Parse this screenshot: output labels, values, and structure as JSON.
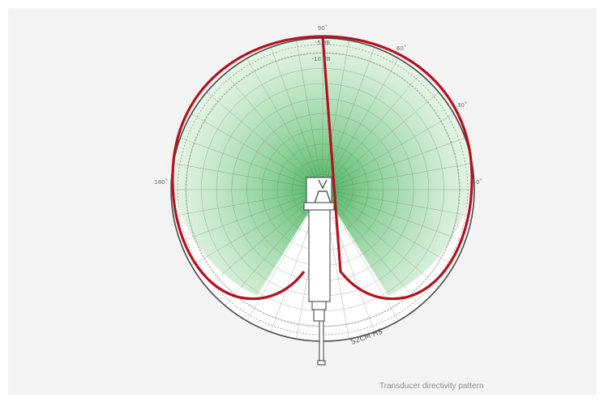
{
  "diagram": {
    "angle_labels": {
      "deg90": "90˚",
      "deg60": "60˚",
      "deg30": "30˚",
      "deg0": "0˚",
      "deg180": "180˚"
    },
    "db_labels": {
      "minus5": "-5 dB",
      "minus10": "-10 dB"
    },
    "device_label": "S2CM HS",
    "pattern_color": "#b3121f",
    "coverage_color": "#9fd8a6"
  },
  "caption": "Transducer directivity pattern"
}
